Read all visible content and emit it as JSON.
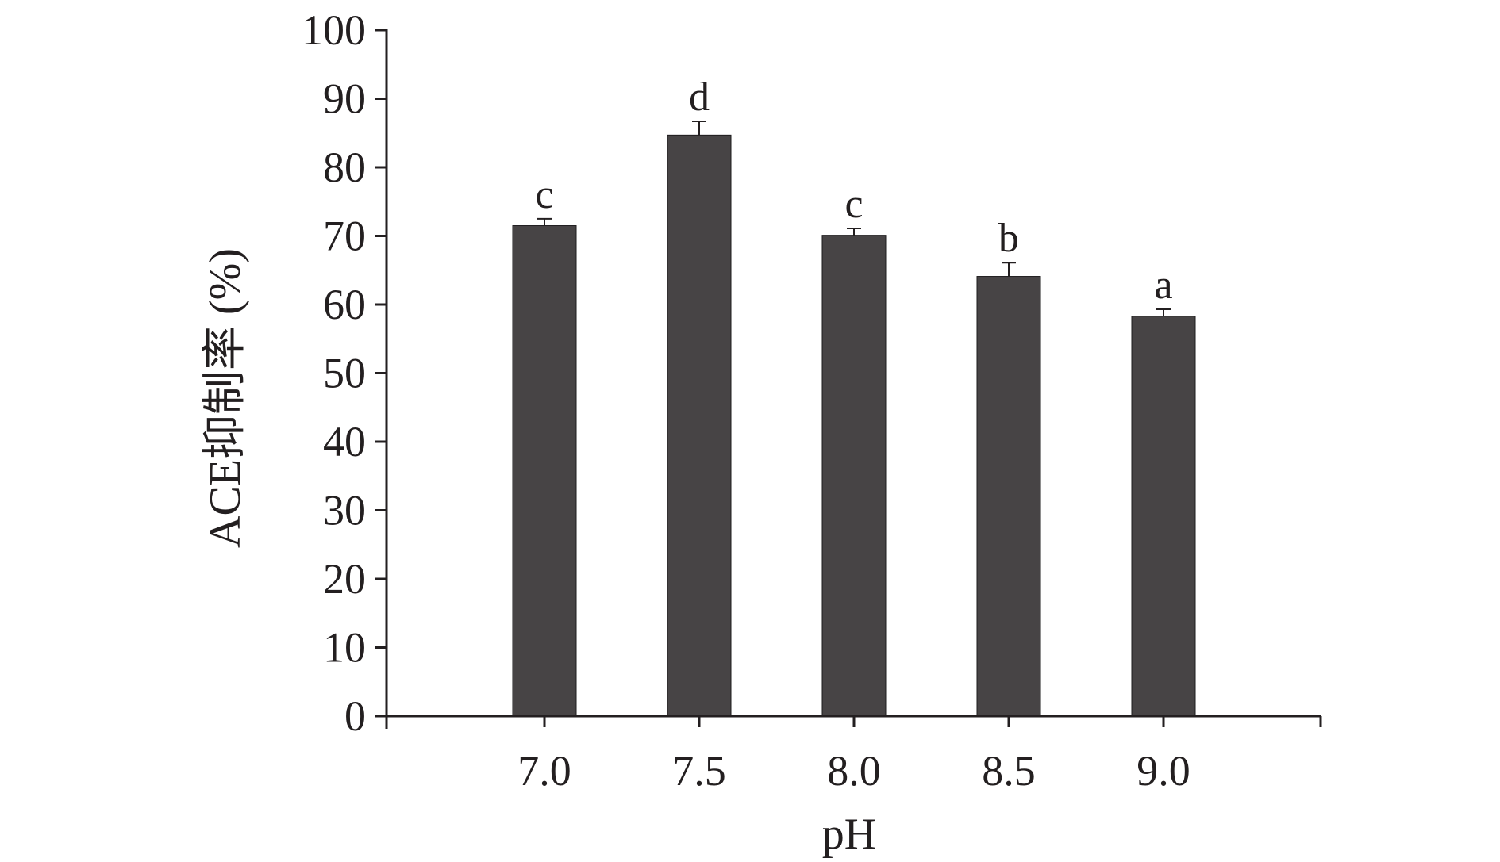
{
  "chart_data": {
    "type": "bar",
    "categories": [
      "7.0",
      "7.5",
      "8.0",
      "8.5",
      "9.0"
    ],
    "series": [
      {
        "values": [
          71.5,
          84.7,
          70.1,
          64.1,
          58.3
        ],
        "errors": [
          1.0,
          2.0,
          1.0,
          2.0,
          1.0
        ],
        "labels": [
          "c",
          "d",
          "c",
          "b",
          "a"
        ]
      }
    ],
    "xlabel": "pH",
    "ylabel": "ACE抑制率 (%)",
    "ylim": [
      0,
      100
    ],
    "yticks": [
      0,
      10,
      20,
      30,
      40,
      50,
      60,
      70,
      80,
      90,
      100
    ],
    "grid": false,
    "legend": "none",
    "bar_color": "#474445",
    "axis_color": "#231f20"
  }
}
